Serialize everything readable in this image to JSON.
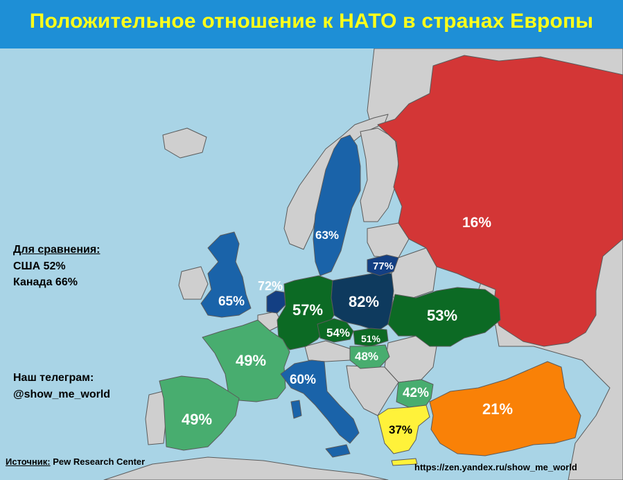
{
  "title": "Положительное отношение к НАТО в странах Европы",
  "comparison": {
    "heading": "Для сравнения:",
    "items": [
      "США 52%",
      "Канада 66%"
    ]
  },
  "telegram": {
    "heading": "Наш телеграм:",
    "handle": "@show_me_world"
  },
  "source": {
    "label": "Источник:",
    "value": "Pew Research Center"
  },
  "url": "https://zen.yandex.ru/show_me_world",
  "countries": {
    "russia": {
      "value": 16,
      "label": "16%"
    },
    "turkey": {
      "value": 21,
      "label": "21%"
    },
    "greece": {
      "value": 37,
      "label": "37%"
    },
    "bulgaria": {
      "value": 42,
      "label": "42%"
    },
    "hungary": {
      "value": 48,
      "label": "48%"
    },
    "france": {
      "value": 49,
      "label": "49%"
    },
    "spain": {
      "value": 49,
      "label": "49%"
    },
    "slovakia": {
      "value": 51,
      "label": "51%"
    },
    "ukraine": {
      "value": 53,
      "label": "53%"
    },
    "czechia": {
      "value": 54,
      "label": "54%"
    },
    "germany": {
      "value": 57,
      "label": "57%"
    },
    "italy": {
      "value": 60,
      "label": "60%"
    },
    "sweden": {
      "value": 63,
      "label": "63%"
    },
    "uk": {
      "value": 65,
      "label": "65%"
    },
    "netherlands": {
      "value": 72,
      "label": "72%"
    },
    "lithuania": {
      "value": 77,
      "label": "77%"
    },
    "poland": {
      "value": 82,
      "label": "82%"
    }
  },
  "colors": {
    "sea": "#a9d4e6",
    "no_data": "#cfcfcf",
    "red": "#d33636",
    "orange": "#f98107",
    "yellow": "#fff23a",
    "light_green": "#48ad6f",
    "dark_green": "#0c6a24",
    "blue": "#1a63a9",
    "dark_blue": "#133f83",
    "navy": "#0e3a5e",
    "title_bar": "#1e8fd6",
    "title_text": "#ffff1a"
  }
}
